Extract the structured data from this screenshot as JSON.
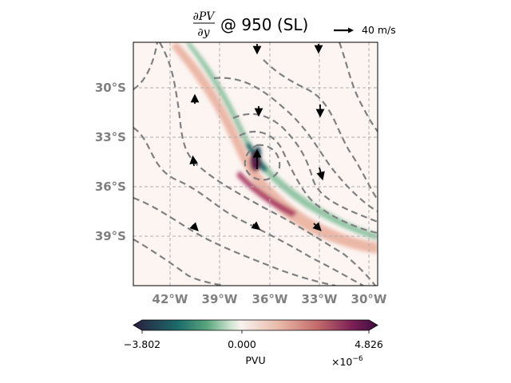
{
  "title": {
    "numerator": "∂PV",
    "denominator": "∂y",
    "suffix": "@ 950 (SL)"
  },
  "quiver_key": {
    "label": "40 m/s"
  },
  "map": {
    "lat_labels": [
      "30°S",
      "33°S",
      "36°S",
      "39°S"
    ],
    "lon_labels": [
      "42°W",
      "39°W",
      "36°W",
      "33°W",
      "30°W"
    ],
    "lat_values": [
      -30,
      -33,
      -36,
      -39
    ],
    "lon_values": [
      -42,
      -39,
      -36,
      -33,
      -30
    ],
    "extent": {
      "lon": [
        -44.2,
        -29.6
      ],
      "lat": [
        -27.4,
        -42.2
      ]
    }
  },
  "colorbar": {
    "min_label": "−3.802",
    "mid_label": "0.000",
    "max_label": "4.826",
    "unit": "PVU",
    "multiplier_base": "×10",
    "multiplier_exp": "−6",
    "colors": [
      "#2a1d3e",
      "#1b6a6a",
      "#58a57d",
      "#cfe6d2",
      "#f8f3f0",
      "#e8b7a6",
      "#c56c6b",
      "#7a1e55",
      "#3b0f3f"
    ]
  },
  "colors": {
    "contour": "#808080",
    "grid": "#b0b0b0",
    "label_gray": "#808080",
    "map_bg": "#fcf5f2"
  }
}
